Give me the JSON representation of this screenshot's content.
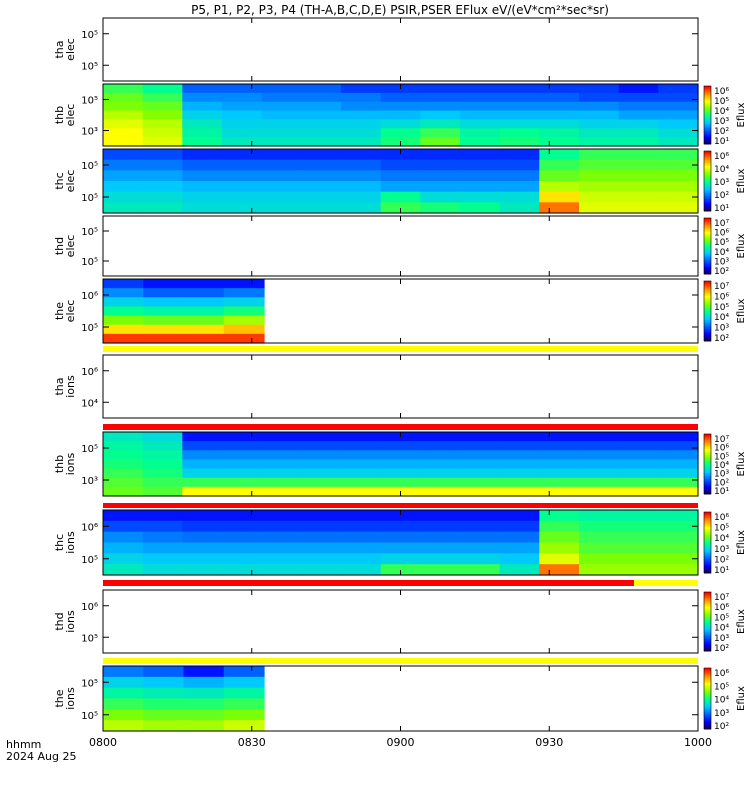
{
  "title": "P5, P1, P2, P3, P4 (TH-A,B,C,D,E) PSIR,PSER EFlux eV/(eV*cm²*sec*sr)",
  "footer": {
    "label1": "hhmm",
    "label2": "2024 Aug 25"
  },
  "chart_data": {
    "type": "heatmap",
    "x_ticks": [
      "0800",
      "0830",
      "0900",
      "0930",
      "1000"
    ],
    "x_range": [
      "08:00",
      "10:00"
    ],
    "colorbar_label": "Eflux",
    "panels": [
      {
        "id": "tha_elec",
        "label1": "tha",
        "label2": "elec",
        "y_ticks": [
          "10⁵",
          "10⁵"
        ],
        "has_data": false,
        "colorbar": null,
        "bar_above": null
      },
      {
        "id": "thb_elec",
        "label1": "thb",
        "label2": "elec",
        "y_ticks": [
          "10⁵",
          "10³"
        ],
        "has_data": true,
        "colorbar": [
          "10⁶",
          "10⁵",
          "10⁴",
          "10³",
          "10²",
          "10¹"
        ],
        "bar_above": null
      },
      {
        "id": "thc_elec",
        "label1": "thc",
        "label2": "elec",
        "y_ticks": [
          "10⁵",
          "10⁵"
        ],
        "has_data": true,
        "colorbar": [
          "10⁶",
          "10⁴",
          "10³",
          "10²",
          "10¹"
        ],
        "bar_above": null
      },
      {
        "id": "thd_elec",
        "label1": "thd",
        "label2": "elec",
        "y_ticks": [
          "10⁵",
          "10⁵"
        ],
        "has_data": false,
        "colorbar": [
          "10⁷",
          "10⁶",
          "10⁵",
          "10⁴",
          "10³",
          "10²"
        ],
        "bar_above": null
      },
      {
        "id": "the_elec",
        "label1": "the",
        "label2": "elec",
        "y_ticks": [
          "10⁶",
          "10⁵"
        ],
        "has_data": true,
        "colorbar": [
          "10⁷",
          "10⁶",
          "10⁵",
          "10⁴",
          "10³",
          "10²"
        ],
        "bar_above": null
      },
      {
        "id": "tha_ions",
        "label1": "tha",
        "label2": "ions",
        "y_ticks": [
          "10⁶",
          "10⁴"
        ],
        "has_data": false,
        "colorbar": null,
        "bar_above": "yellow"
      },
      {
        "id": "thb_ions",
        "label1": "thb",
        "label2": "ions",
        "y_ticks": [
          "10⁵",
          "10³"
        ],
        "has_data": true,
        "colorbar": [
          "10⁷",
          "10⁶",
          "10⁵",
          "10⁴",
          "10³",
          "10²",
          "10¹"
        ],
        "bar_above": "red"
      },
      {
        "id": "thc_ions",
        "label1": "thc",
        "label2": "ions",
        "y_ticks": [
          "10⁶",
          "10⁵"
        ],
        "has_data": true,
        "colorbar": [
          "10⁶",
          "10⁵",
          "10⁴",
          "10³",
          "10²",
          "10¹"
        ],
        "bar_above": "red"
      },
      {
        "id": "thd_ions",
        "label1": "thd",
        "label2": "ions",
        "y_ticks": [
          "10⁶",
          "10⁵"
        ],
        "has_data": false,
        "colorbar": [
          "10⁷",
          "10⁶",
          "10⁵",
          "10⁴",
          "10³",
          "10²"
        ],
        "bar_above": "red-yellow"
      },
      {
        "id": "the_ions",
        "label1": "the",
        "label2": "ions",
        "y_ticks": [
          "10⁵",
          "10⁵"
        ],
        "has_data": true,
        "colorbar": [
          "10⁶",
          "10⁵",
          "10⁴",
          "10³",
          "10²"
        ],
        "bar_above": "yellow"
      }
    ],
    "colors": {
      "bar_yellow": "#ffff00",
      "bar_red": "#ff0000",
      "colormap": [
        "#1a0030",
        "#0000ff",
        "#0060ff",
        "#00c8ff",
        "#00ff90",
        "#80ff00",
        "#ffff00",
        "#ff9000",
        "#ff0000"
      ]
    },
    "note": "Heatmap cells are approximate colormap levels (0-1) per time bin and energy bin, highest energy first.",
    "heatmaps": {
      "thb_elec": {
        "x_end": "08:20",
        "x_end2": "10:00",
        "levels": [
          [
            [
              0.55,
              0.5,
              0.25,
              0.25,
              0.25,
              0.25,
              0.2,
              0.2,
              0.2,
              0.2,
              0.2,
              0.2,
              0.2,
              0.15,
              0.2
            ],
            [
              0.6,
              0.55,
              0.3,
              0.3,
              0.28,
              0.28,
              0.28,
              0.25,
              0.25,
              0.25,
              0.25,
              0.25,
              0.22,
              0.22,
              0.22
            ],
            [
              0.62,
              0.6,
              0.35,
              0.33,
              0.33,
              0.33,
              0.3,
              0.3,
              0.3,
              0.3,
              0.3,
              0.3,
              0.3,
              0.28,
              0.28
            ],
            [
              0.68,
              0.63,
              0.4,
              0.38,
              0.36,
              0.36,
              0.36,
              0.36,
              0.38,
              0.36,
              0.36,
              0.36,
              0.36,
              0.33,
              0.33
            ],
            [
              0.72,
              0.68,
              0.45,
              0.4,
              0.4,
              0.4,
              0.4,
              0.42,
              0.45,
              0.42,
              0.42,
              0.42,
              0.4,
              0.4,
              0.38
            ],
            [
              0.75,
              0.7,
              0.48,
              0.42,
              0.42,
              0.42,
              0.42,
              0.5,
              0.55,
              0.48,
              0.5,
              0.48,
              0.45,
              0.45,
              0.42
            ],
            [
              0.75,
              0.72,
              0.5,
              0.45,
              0.45,
              0.45,
              0.45,
              0.52,
              0.6,
              0.5,
              0.52,
              0.5,
              0.48,
              0.48,
              0.45
            ]
          ]
        ]
      },
      "thc_elec": [
        [
          0.22,
          0.22,
          0.18,
          0.18,
          0.18,
          0.18,
          0.18,
          0.18,
          0.18,
          0.18,
          0.18,
          0.5,
          0.55,
          0.55,
          0.55
        ],
        [
          0.28,
          0.28,
          0.25,
          0.25,
          0.25,
          0.25,
          0.25,
          0.22,
          0.22,
          0.22,
          0.22,
          0.55,
          0.58,
          0.58,
          0.58
        ],
        [
          0.33,
          0.33,
          0.3,
          0.3,
          0.3,
          0.3,
          0.3,
          0.28,
          0.28,
          0.28,
          0.28,
          0.6,
          0.62,
          0.62,
          0.62
        ],
        [
          0.38,
          0.38,
          0.36,
          0.36,
          0.36,
          0.36,
          0.36,
          0.33,
          0.33,
          0.33,
          0.33,
          0.68,
          0.66,
          0.66,
          0.66
        ],
        [
          0.42,
          0.42,
          0.4,
          0.4,
          0.4,
          0.4,
          0.4,
          0.5,
          0.42,
          0.42,
          0.42,
          0.78,
          0.7,
          0.7,
          0.7
        ],
        [
          0.45,
          0.45,
          0.42,
          0.42,
          0.42,
          0.42,
          0.42,
          0.55,
          0.52,
          0.5,
          0.45,
          0.9,
          0.72,
          0.72,
          0.72
        ]
      ],
      "the_elec": [
        [
          0.2,
          0.15,
          0.15,
          0.15
        ],
        [
          0.3,
          0.25,
          0.25,
          0.28
        ],
        [
          0.4,
          0.38,
          0.38,
          0.4
        ],
        [
          0.5,
          0.48,
          0.48,
          0.52
        ],
        [
          0.62,
          0.6,
          0.6,
          0.66
        ],
        [
          0.78,
          0.78,
          0.78,
          0.82
        ],
        [
          0.95,
          0.95,
          0.95,
          0.95
        ]
      ],
      "thb_ions": [
        [
          0.45,
          0.42,
          0.15,
          0.15,
          0.15,
          0.15,
          0.15,
          0.15,
          0.15,
          0.15,
          0.15,
          0.15,
          0.15,
          0.15,
          0.15
        ],
        [
          0.48,
          0.45,
          0.22,
          0.22,
          0.22,
          0.22,
          0.22,
          0.22,
          0.22,
          0.22,
          0.22,
          0.22,
          0.22,
          0.22,
          0.22
        ],
        [
          0.5,
          0.48,
          0.3,
          0.3,
          0.3,
          0.3,
          0.3,
          0.3,
          0.3,
          0.3,
          0.3,
          0.3,
          0.3,
          0.3,
          0.3
        ],
        [
          0.52,
          0.5,
          0.35,
          0.35,
          0.35,
          0.35,
          0.35,
          0.35,
          0.35,
          0.35,
          0.35,
          0.35,
          0.35,
          0.35,
          0.35
        ],
        [
          0.55,
          0.52,
          0.4,
          0.4,
          0.4,
          0.4,
          0.4,
          0.4,
          0.4,
          0.4,
          0.4,
          0.4,
          0.4,
          0.4,
          0.4
        ],
        [
          0.58,
          0.55,
          0.55,
          0.55,
          0.55,
          0.55,
          0.55,
          0.55,
          0.55,
          0.55,
          0.55,
          0.55,
          0.55,
          0.55,
          0.55
        ],
        [
          0.6,
          0.58,
          0.75,
          0.75,
          0.75,
          0.75,
          0.75,
          0.75,
          0.75,
          0.75,
          0.75,
          0.75,
          0.75,
          0.75,
          0.75
        ]
      ],
      "thc_ions": [
        [
          0.15,
          0.15,
          0.15,
          0.15,
          0.15,
          0.15,
          0.15,
          0.15,
          0.15,
          0.15,
          0.15,
          0.5,
          0.48,
          0.48,
          0.48
        ],
        [
          0.22,
          0.22,
          0.2,
          0.2,
          0.2,
          0.2,
          0.2,
          0.2,
          0.2,
          0.2,
          0.2,
          0.55,
          0.52,
          0.52,
          0.52
        ],
        [
          0.3,
          0.28,
          0.27,
          0.27,
          0.27,
          0.27,
          0.27,
          0.27,
          0.27,
          0.27,
          0.27,
          0.6,
          0.55,
          0.55,
          0.55
        ],
        [
          0.35,
          0.33,
          0.33,
          0.33,
          0.33,
          0.33,
          0.33,
          0.33,
          0.33,
          0.33,
          0.33,
          0.65,
          0.58,
          0.58,
          0.58
        ],
        [
          0.4,
          0.38,
          0.38,
          0.38,
          0.38,
          0.38,
          0.38,
          0.4,
          0.4,
          0.4,
          0.38,
          0.72,
          0.62,
          0.62,
          0.62
        ],
        [
          0.45,
          0.42,
          0.42,
          0.42,
          0.42,
          0.42,
          0.42,
          0.55,
          0.55,
          0.55,
          0.45,
          0.9,
          0.65,
          0.65,
          0.65
        ]
      ],
      "the_ions": [
        [
          0.28,
          0.25,
          0.15,
          0.25
        ],
        [
          0.4,
          0.38,
          0.35,
          0.38
        ],
        [
          0.48,
          0.46,
          0.45,
          0.48
        ],
        [
          0.55,
          0.53,
          0.53,
          0.55
        ],
        [
          0.62,
          0.6,
          0.6,
          0.62
        ],
        [
          0.68,
          0.66,
          0.66,
          0.7
        ]
      ]
    }
  }
}
